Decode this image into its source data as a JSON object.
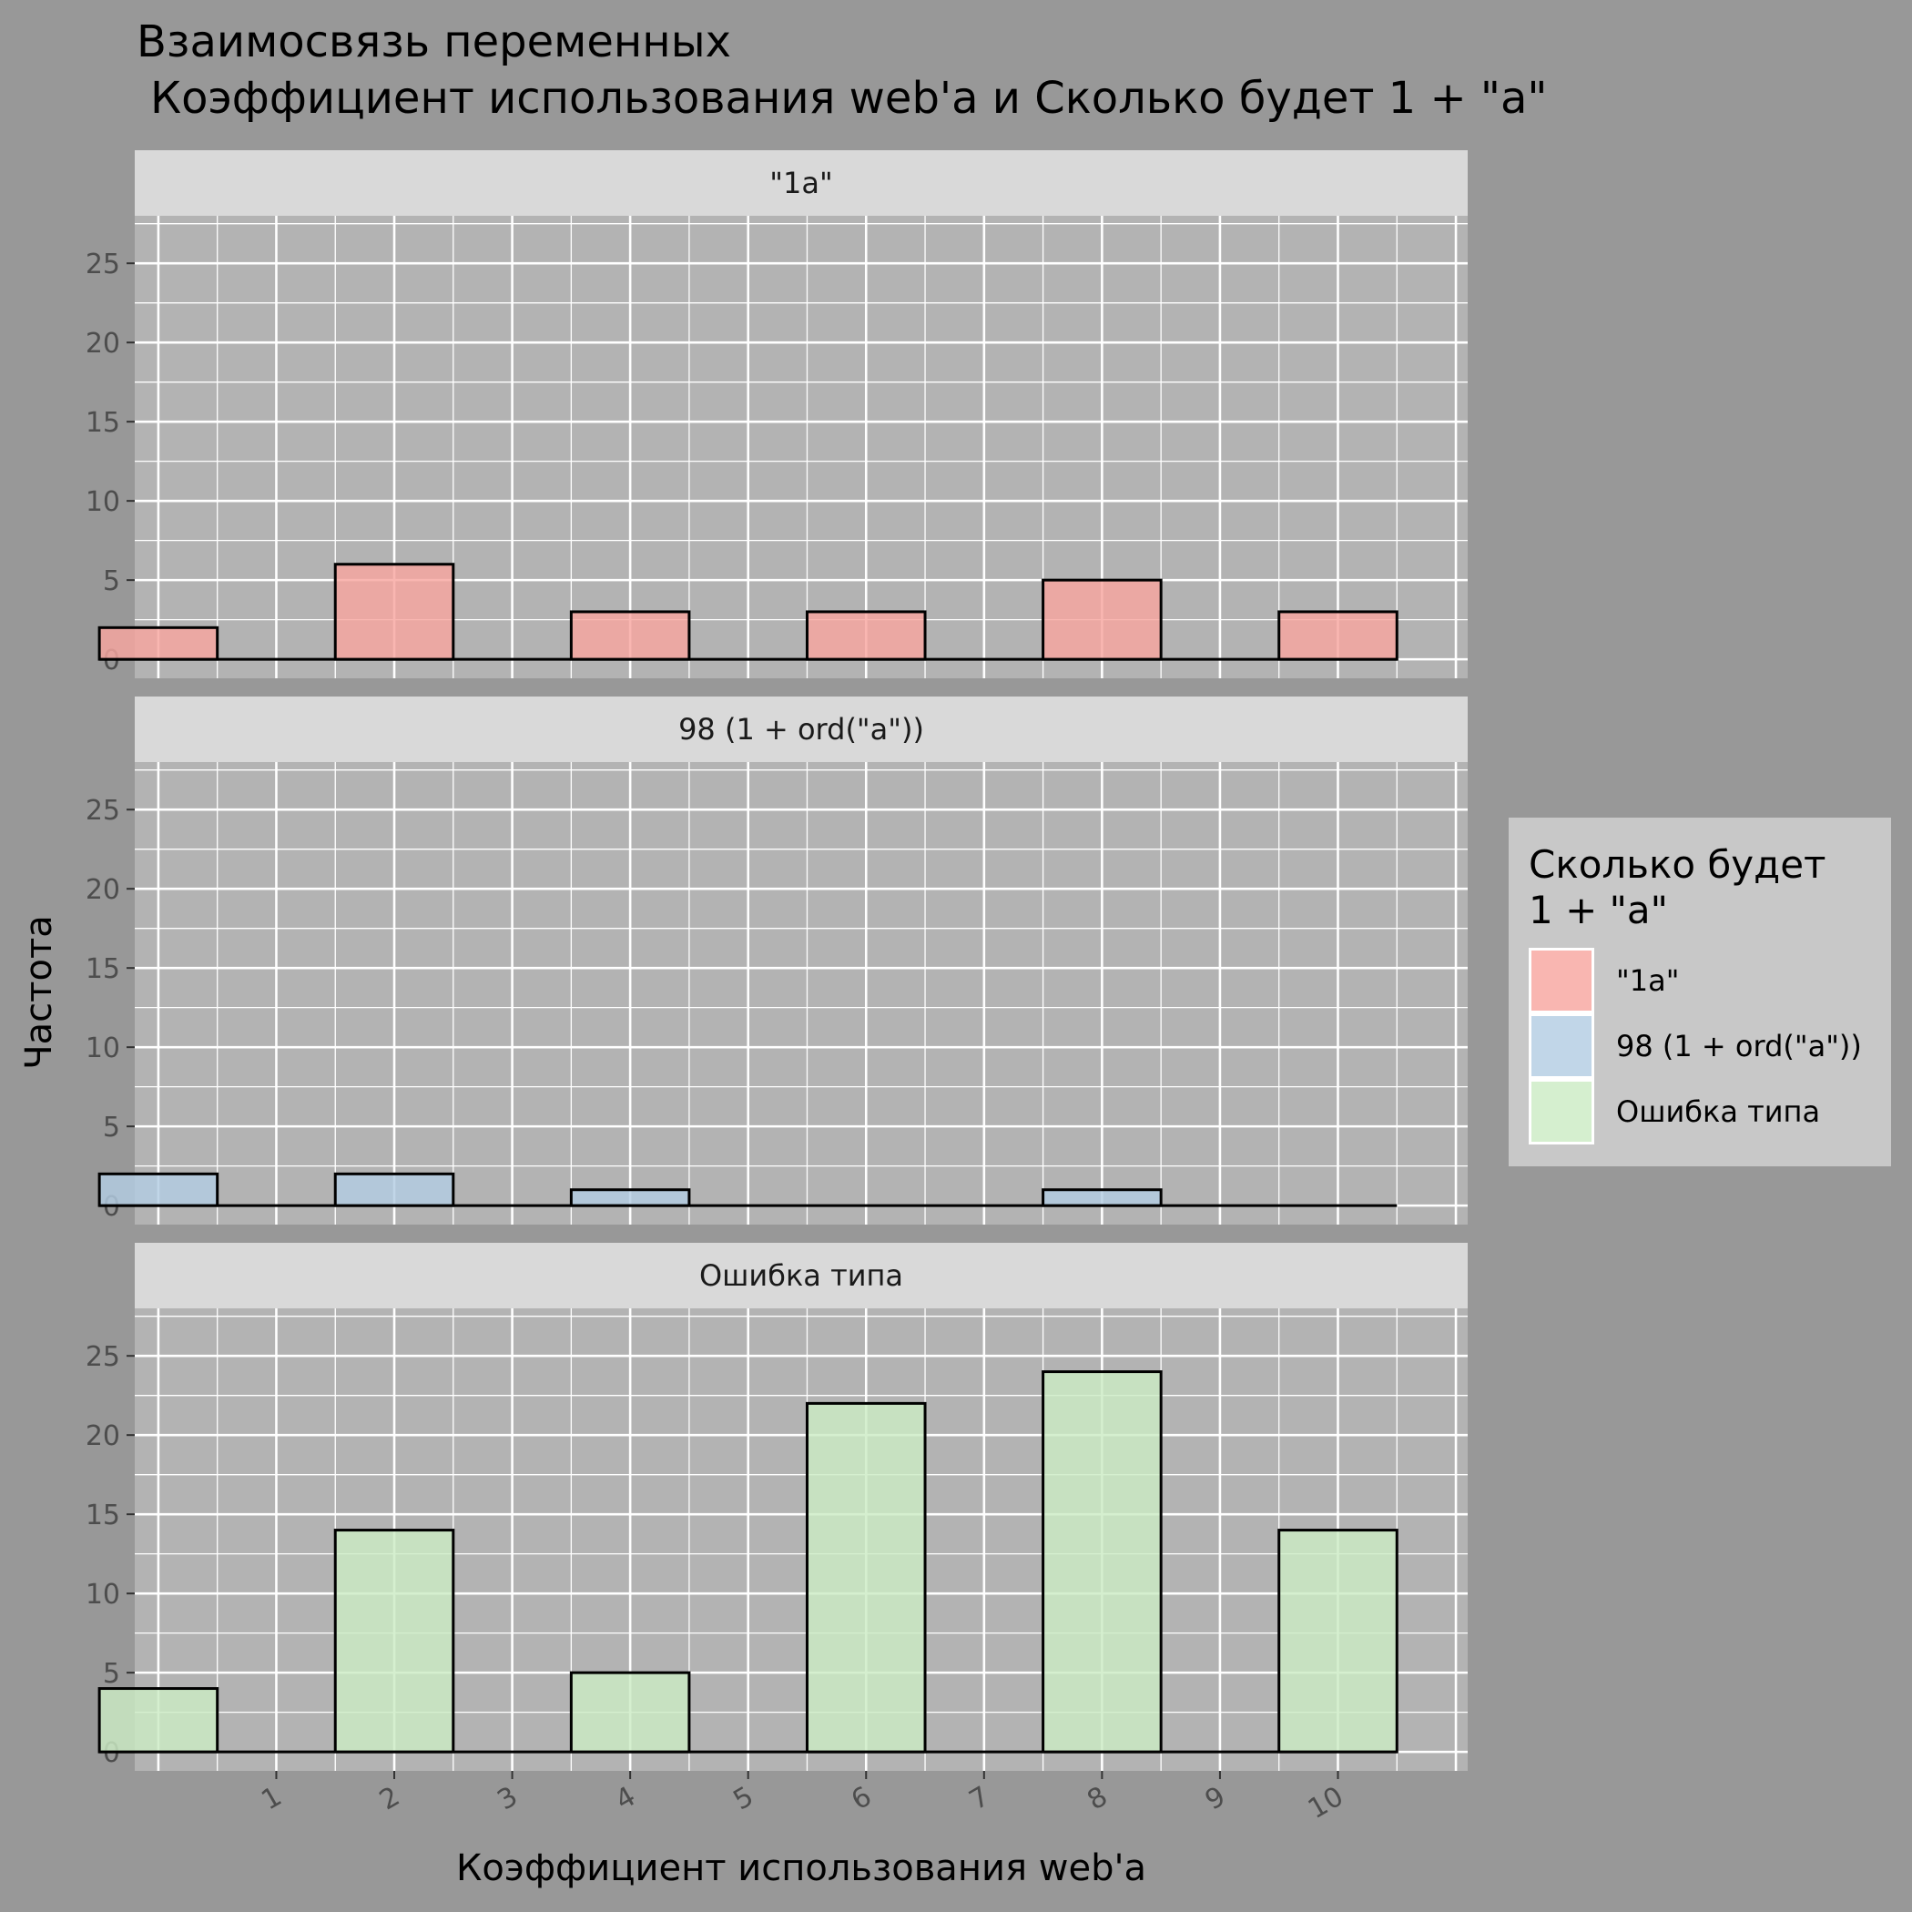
{
  "chart_data": {
    "type": "bar",
    "title": "Взаимосвязь переменных",
    "subtitle": "Коэффициент использования web'a и Сколько будет 1 + \"a\"",
    "xlabel": "Коэффициент использования web'a",
    "ylabel": "Частота",
    "x_ticks": [
      "1",
      "2",
      "3",
      "4",
      "5",
      "6",
      "7",
      "8",
      "9",
      "10"
    ],
    "xlim": [
      -0.2,
      11.1
    ],
    "ylim": [
      -1.2,
      28
    ],
    "y_ticks": [
      0,
      5,
      10,
      15,
      20,
      25
    ],
    "x": [
      0,
      2,
      4,
      6,
      8,
      10
    ],
    "bar_width": 1,
    "grid": true,
    "legend": {
      "title": "Сколько будет 1 + \"a\"",
      "title_lines": [
        "Сколько будет",
        "1 + \"a\""
      ],
      "position": "right"
    },
    "series": [
      {
        "name": "\"1a\"",
        "values": [
          2,
          6,
          3,
          3,
          5,
          3
        ],
        "color": "#f8a6a0"
      },
      {
        "name": "98 (1 + ord(\"a\"))",
        "values": [
          2,
          2,
          1,
          0,
          1,
          0
        ],
        "color": "#b3cde3"
      },
      {
        "name": "Ошибка типа",
        "values": [
          4,
          14,
          5,
          22,
          24,
          14
        ],
        "color": "#ccebc5"
      }
    ]
  },
  "colors": {
    "background": "#989898",
    "panel": "#b3b3b3",
    "strip": "#d9d9d9",
    "grid": "#ffffff",
    "legend_background": "#c8c8c8"
  }
}
